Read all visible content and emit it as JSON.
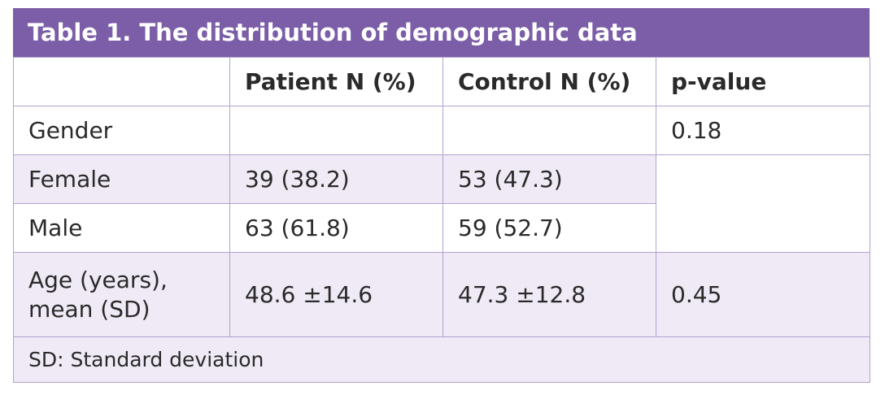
{
  "title": "Table 1. The distribution of demographic data",
  "headers": [
    "",
    "Patient N (%)",
    "Control N (%)",
    "p-value"
  ],
  "rows": {
    "gender": {
      "label": "Gender",
      "patient": "",
      "control": "",
      "p": "0.18"
    },
    "female": {
      "label": "Female",
      "patient": "39 (38.2)",
      "control": "53 (47.3)"
    },
    "male": {
      "label": "Male",
      "patient": "63 (61.8)",
      "control": "59 (52.7)"
    },
    "age": {
      "label_line1": "Age (years),",
      "label_line2": "mean (SD)",
      "patient": "48.6 ±14.6",
      "control": "47.3 ±12.8",
      "p": "0.45"
    }
  },
  "footer": "SD: Standard deviation",
  "colors": {
    "header_bg": "#7b5ea7",
    "row_tint": "#efeaf5",
    "border": "#b3a2cf"
  }
}
